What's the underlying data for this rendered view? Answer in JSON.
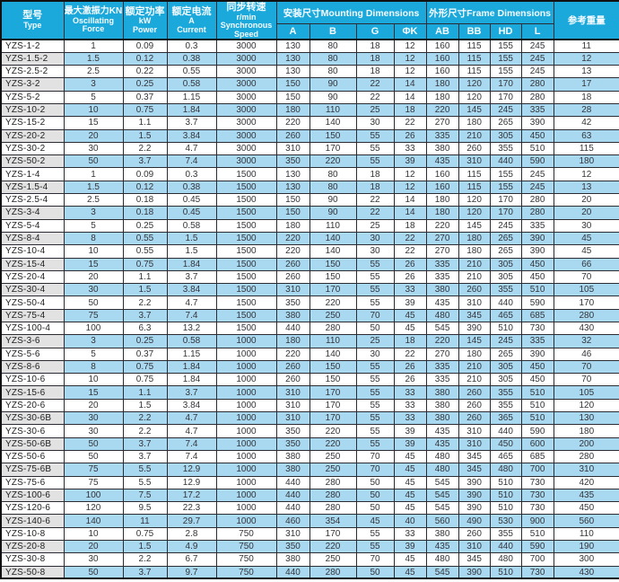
{
  "colors": {
    "header_bg": "#1ba9db",
    "row_alt_bg": "#a9d9f1",
    "type_alt_bg": "#e2e2e2",
    "border": "#2b2b33"
  },
  "table": {
    "headers": {
      "type_zh": "型号",
      "type_en": "Type",
      "force_zh": "最大激振力KN",
      "force_en1": "Oscillating",
      "force_en2": "Force",
      "power_zh": "额定功率",
      "power_unit": "kW",
      "power_en": "Power",
      "current_zh": "额定电流",
      "current_unit": "A",
      "current_en": "Current",
      "speed_zh": "同步转速",
      "speed_unit": "r/min",
      "speed_en1": "Synchronous",
      "speed_en2": "Speed",
      "mounting_group": "安装尺寸Mounting Dimensions",
      "frame_group": "外形尺寸Frame Dimensions",
      "weight": "参考重量",
      "mounting_cols": [
        "A",
        "B",
        "G",
        "ΦK"
      ],
      "frame_cols": [
        "AB",
        "BB",
        "HD",
        "L"
      ]
    },
    "rows": [
      [
        "YZS-1-2",
        "1",
        "0.09",
        "0.3",
        "3000",
        "130",
        "80",
        "18",
        "12",
        "160",
        "115",
        "155",
        "245",
        "11"
      ],
      [
        "YZS-1.5-2",
        "1.5",
        "0.12",
        "0.38",
        "3000",
        "130",
        "80",
        "18",
        "12",
        "160",
        "115",
        "155",
        "245",
        "12"
      ],
      [
        "YZS-2.5-2",
        "2.5",
        "0.22",
        "0.55",
        "3000",
        "130",
        "80",
        "18",
        "12",
        "160",
        "115",
        "155",
        "245",
        "13"
      ],
      [
        "YZS-3-2",
        "3",
        "0.25",
        "0.58",
        "3000",
        "150",
        "90",
        "22",
        "14",
        "180",
        "120",
        "170",
        "280",
        "17"
      ],
      [
        "YZS-5-2",
        "5",
        "0.37",
        "1.15",
        "3000",
        "150",
        "90",
        "22",
        "14",
        "180",
        "120",
        "170",
        "280",
        "18"
      ],
      [
        "YZS-10-2",
        "10",
        "0.75",
        "1.84",
        "3000",
        "180",
        "110",
        "25",
        "18",
        "220",
        "145",
        "245",
        "335",
        "28"
      ],
      [
        "YZS-15-2",
        "15",
        "1.1",
        "3.7",
        "3000",
        "220",
        "140",
        "30",
        "22",
        "270",
        "180",
        "265",
        "390",
        "42"
      ],
      [
        "YZS-20-2",
        "20",
        "1.5",
        "3.84",
        "3000",
        "260",
        "150",
        "55",
        "26",
        "335",
        "210",
        "305",
        "450",
        "63"
      ],
      [
        "YZS-30-2",
        "30",
        "2.2",
        "4.7",
        "3000",
        "310",
        "170",
        "55",
        "33",
        "380",
        "260",
        "355",
        "510",
        "115"
      ],
      [
        "YZS-50-2",
        "50",
        "3.7",
        "7.4",
        "3000",
        "350",
        "220",
        "55",
        "39",
        "435",
        "310",
        "440",
        "590",
        "180"
      ],
      [
        "YZS-1-4",
        "1",
        "0.09",
        "0.3",
        "1500",
        "130",
        "80",
        "18",
        "12",
        "160",
        "115",
        "155",
        "245",
        "12"
      ],
      [
        "YZS-1.5-4",
        "1.5",
        "0.12",
        "0.38",
        "1500",
        "130",
        "80",
        "18",
        "12",
        "160",
        "115",
        "155",
        "245",
        "13"
      ],
      [
        "YZS-2.5-4",
        "2.5",
        "0.18",
        "0.45",
        "1500",
        "150",
        "90",
        "22",
        "14",
        "180",
        "120",
        "170",
        "280",
        "20"
      ],
      [
        "YZS-3-4",
        "3",
        "0.18",
        "0.45",
        "1500",
        "150",
        "90",
        "22",
        "14",
        "180",
        "120",
        "170",
        "280",
        "20"
      ],
      [
        "YZS-5-4",
        "5",
        "0.25",
        "0.58",
        "1500",
        "180",
        "110",
        "25",
        "18",
        "220",
        "145",
        "245",
        "335",
        "30"
      ],
      [
        "YZS-8-4",
        "8",
        "0.55",
        "1.5",
        "1500",
        "220",
        "140",
        "30",
        "22",
        "270",
        "180",
        "265",
        "390",
        "45"
      ],
      [
        "YZS-10-4",
        "10",
        "0.55",
        "1.5",
        "1500",
        "220",
        "140",
        "30",
        "22",
        "270",
        "180",
        "265",
        "390",
        "45"
      ],
      [
        "YZS-15-4",
        "15",
        "0.75",
        "1.84",
        "1500",
        "260",
        "150",
        "55",
        "26",
        "335",
        "210",
        "305",
        "450",
        "66"
      ],
      [
        "YZS-20-4",
        "20",
        "1.1",
        "3.7",
        "1500",
        "260",
        "150",
        "55",
        "26",
        "335",
        "210",
        "305",
        "450",
        "70"
      ],
      [
        "YZS-30-4",
        "30",
        "1.5",
        "3.84",
        "1500",
        "310",
        "170",
        "55",
        "33",
        "380",
        "260",
        "355",
        "510",
        "105"
      ],
      [
        "YZS-50-4",
        "50",
        "2.2",
        "4.7",
        "1500",
        "350",
        "220",
        "55",
        "39",
        "435",
        "310",
        "440",
        "590",
        "170"
      ],
      [
        "YZS-75-4",
        "75",
        "3.7",
        "7.4",
        "1500",
        "380",
        "250",
        "70",
        "45",
        "480",
        "345",
        "465",
        "685",
        "280"
      ],
      [
        "YZS-100-4",
        "100",
        "6.3",
        "13.2",
        "1500",
        "440",
        "280",
        "50",
        "45",
        "545",
        "390",
        "510",
        "730",
        "430"
      ],
      [
        "YZS-3-6",
        "3",
        "0.25",
        "0.58",
        "1000",
        "180",
        "110",
        "25",
        "18",
        "220",
        "145",
        "245",
        "335",
        "32"
      ],
      [
        "YZS-5-6",
        "5",
        "0.37",
        "1.15",
        "1000",
        "220",
        "140",
        "30",
        "22",
        "270",
        "180",
        "265",
        "390",
        "46"
      ],
      [
        "YZS-8-6",
        "8",
        "0.75",
        "1.84",
        "1000",
        "260",
        "150",
        "55",
        "26",
        "335",
        "210",
        "305",
        "450",
        "70"
      ],
      [
        "YZS-10-6",
        "10",
        "0.75",
        "1.84",
        "1000",
        "260",
        "150",
        "55",
        "26",
        "335",
        "210",
        "305",
        "450",
        "70"
      ],
      [
        "YZS-15-6",
        "15",
        "1.1",
        "3.7",
        "1000",
        "310",
        "170",
        "55",
        "33",
        "380",
        "260",
        "355",
        "510",
        "105"
      ],
      [
        "YZS-20-6",
        "20",
        "1.5",
        "3.84",
        "1000",
        "310",
        "170",
        "55",
        "33",
        "380",
        "260",
        "355",
        "510",
        "120"
      ],
      [
        "YZS-30-6B",
        "30",
        "2.2",
        "4.7",
        "1000",
        "310",
        "170",
        "55",
        "33",
        "380",
        "260",
        "365",
        "510",
        "130"
      ],
      [
        "YZS-30-6",
        "30",
        "2.2",
        "4.7",
        "1000",
        "350",
        "220",
        "55",
        "39",
        "435",
        "310",
        "440",
        "590",
        "180"
      ],
      [
        "YZS-50-6B",
        "50",
        "3.7",
        "7.4",
        "1000",
        "350",
        "220",
        "55",
        "39",
        "435",
        "310",
        "450",
        "600",
        "200"
      ],
      [
        "YZS-50-6",
        "50",
        "3.7",
        "7.4",
        "1000",
        "380",
        "250",
        "70",
        "45",
        "480",
        "345",
        "465",
        "685",
        "280"
      ],
      [
        "YZS-75-6B",
        "75",
        "5.5",
        "12.9",
        "1000",
        "380",
        "250",
        "70",
        "45",
        "480",
        "345",
        "480",
        "700",
        "310"
      ],
      [
        "YZS-75-6",
        "75",
        "5.5",
        "12.9",
        "1000",
        "440",
        "280",
        "50",
        "45",
        "545",
        "390",
        "510",
        "730",
        "420"
      ],
      [
        "YZS-100-6",
        "100",
        "7.5",
        "17.2",
        "1000",
        "440",
        "280",
        "50",
        "45",
        "545",
        "390",
        "510",
        "730",
        "435"
      ],
      [
        "YZS-120-6",
        "120",
        "9.5",
        "22.3",
        "1000",
        "440",
        "280",
        "50",
        "45",
        "545",
        "390",
        "510",
        "730",
        "450"
      ],
      [
        "YZS-140-6",
        "140",
        "11",
        "29.7",
        "1000",
        "460",
        "354",
        "45",
        "40",
        "560",
        "490",
        "530",
        "900",
        "560"
      ],
      [
        "YZS-10-8",
        "10",
        "0.75",
        "2.8",
        "750",
        "310",
        "170",
        "55",
        "33",
        "380",
        "260",
        "355",
        "510",
        "110"
      ],
      [
        "YZS-20-8",
        "20",
        "1.5",
        "4.9",
        "750",
        "350",
        "220",
        "55",
        "39",
        "435",
        "310",
        "440",
        "590",
        "190"
      ],
      [
        "YZS-30-8",
        "30",
        "2.2",
        "6.7",
        "750",
        "380",
        "250",
        "70",
        "45",
        "480",
        "345",
        "480",
        "700",
        "300"
      ],
      [
        "YZS-50-8",
        "50",
        "3.7",
        "9.7",
        "750",
        "440",
        "280",
        "50",
        "45",
        "545",
        "390",
        "510",
        "730",
        "430"
      ]
    ]
  }
}
